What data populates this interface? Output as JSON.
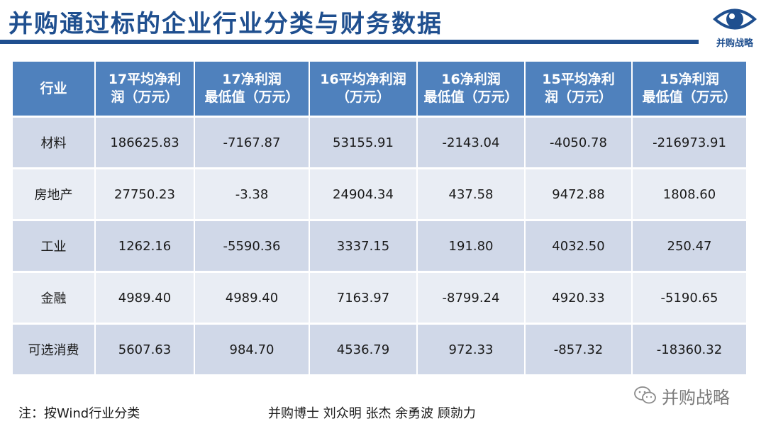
{
  "slide": {
    "title": "并购通过标的企业行业分类与财务数据",
    "logo_text": "并购战略",
    "note": "注：按Wind行业分类",
    "authors": "并购博士 刘众明 张杰 余勇波 顾勍力",
    "watermark": "并购战略"
  },
  "table": {
    "headers": [
      {
        "line1": "行业",
        "line2": ""
      },
      {
        "line1": "17平均净利",
        "line2": "润（万元）"
      },
      {
        "line1": "17净利润",
        "line2": "最低值（万元）"
      },
      {
        "line1": "16平均净利润",
        "line2": "（万元）"
      },
      {
        "line1": "16净利润",
        "line2": "最低值（万元）"
      },
      {
        "line1": "15平均净利",
        "line2": "润（万元）"
      },
      {
        "line1": "15净利润",
        "line2": "最低值（万元）"
      }
    ],
    "rows": [
      [
        "材料",
        "186625.83",
        "-7167.87",
        "53155.91",
        "-2143.04",
        "-4050.78",
        "-216973.91"
      ],
      [
        "房地产",
        "27750.23",
        "-3.38",
        "24904.34",
        "437.58",
        "9472.88",
        "1808.60"
      ],
      [
        "工业",
        "1262.16",
        "-5590.36",
        "3337.15",
        "191.80",
        "4032.50",
        "250.47"
      ],
      [
        "金融",
        "4989.40",
        "4989.40",
        "7163.97",
        "-8799.24",
        "4920.33",
        "-5190.65"
      ],
      [
        "可选消费",
        "5607.63",
        "984.70",
        "4536.79",
        "972.33",
        "-857.32",
        "-18360.32"
      ]
    ]
  },
  "colors": {
    "title": "#1f4f8f",
    "header_bg": "#4f81bd",
    "row_dark": "#d0d8e8",
    "row_light": "#e9edf4"
  },
  "icons": {
    "logo": "eye-icon",
    "watermark": "wechat-icon"
  }
}
